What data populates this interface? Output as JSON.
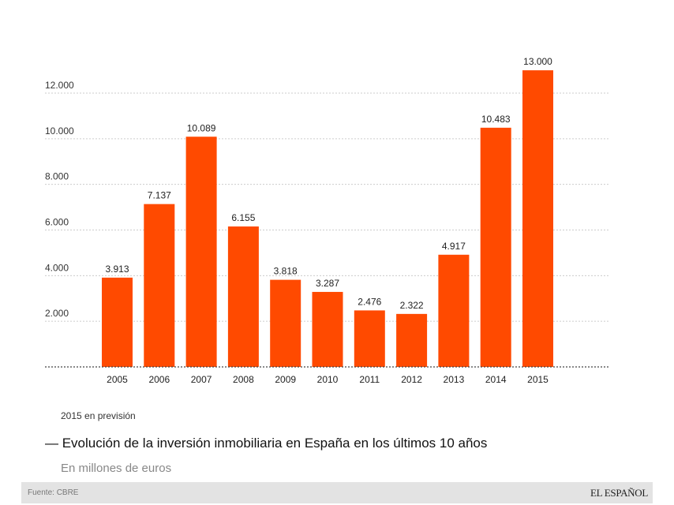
{
  "chart_data": {
    "type": "bar",
    "categories": [
      "2005",
      "2006",
      "2007",
      "2008",
      "2009",
      "2010",
      "2011",
      "2012",
      "2013",
      "2014",
      "2015"
    ],
    "values": [
      3913,
      7137,
      10089,
      6155,
      3818,
      3287,
      2476,
      2322,
      4917,
      10483,
      13000
    ],
    "data_labels": [
      "3.913",
      "7.137",
      "10.089",
      "6.155",
      "3.818",
      "3.287",
      "2.476",
      "2.322",
      "4.917",
      "10.483",
      "13.000"
    ],
    "yticks": [
      2000,
      4000,
      6000,
      8000,
      10000,
      12000
    ],
    "ytick_labels": [
      "2.000",
      "4.000",
      "6.000",
      "8.000",
      "10.000",
      "12.000"
    ],
    "ylim": [
      0,
      13000
    ],
    "grid": true,
    "bar_color": "#ff4a00",
    "title": "— Evolución de la inversión inmobiliaria en España en los últimos 10 años",
    "subtitle": "En millones de euros",
    "note": "2015 en previsión"
  },
  "footer": {
    "source": "Fuente: CBRE",
    "logo": "EL ESPAÑOL"
  }
}
